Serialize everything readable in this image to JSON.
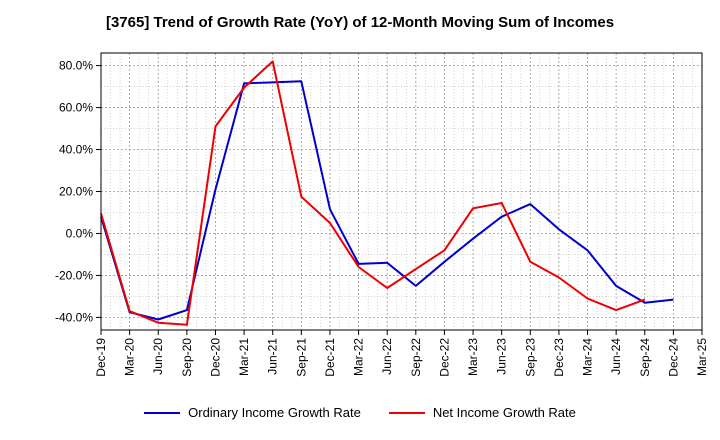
{
  "chart_data": {
    "type": "line",
    "title": "[3765]  Trend of Growth Rate (YoY) of 12-Month Moving Sum of Incomes",
    "x": [
      "Dec-19",
      "Mar-20",
      "Jun-20",
      "Sep-20",
      "Dec-20",
      "Mar-21",
      "Jun-21",
      "Sep-21",
      "Dec-21",
      "Mar-22",
      "Jun-22",
      "Sep-22",
      "Dec-22",
      "Mar-23",
      "Jun-23",
      "Sep-23",
      "Dec-23",
      "Mar-24",
      "Jun-24",
      "Sep-24",
      "Dec-24",
      "Mar-25"
    ],
    "ylim": [
      -46,
      86
    ],
    "yticks": [
      80,
      60,
      40,
      20,
      0,
      -20,
      -40
    ],
    "ytick_labels": [
      "80.0%",
      "60.0%",
      "40.0%",
      "20.0%",
      "0.0%",
      "-20.0%",
      "-40.0%"
    ],
    "grid": true,
    "legend_position": "bottom",
    "series": [
      {
        "name": "Ordinary Income Growth Rate",
        "color": "#0000cc",
        "values": [
          8.0,
          -37.5,
          -41.0,
          -36.5,
          21.0,
          71.5,
          72.0,
          72.5,
          11.5,
          -14.5,
          -14.0,
          -25.0,
          -13.5,
          -2.5,
          8.0,
          14.0,
          2.0,
          -8.0,
          -25.0,
          -33.0,
          -31.5,
          null
        ]
      },
      {
        "name": "Net Income Growth Rate",
        "color": "#ee0000",
        "values": [
          9.5,
          -37.0,
          -42.5,
          -43.5,
          51.0,
          69.5,
          82.0,
          17.5,
          5.0,
          -16.0,
          -26.0,
          -17.0,
          -8.0,
          12.0,
          14.5,
          -13.5,
          -21.0,
          -31.0,
          -36.5,
          -31.5,
          null,
          null
        ]
      }
    ]
  }
}
